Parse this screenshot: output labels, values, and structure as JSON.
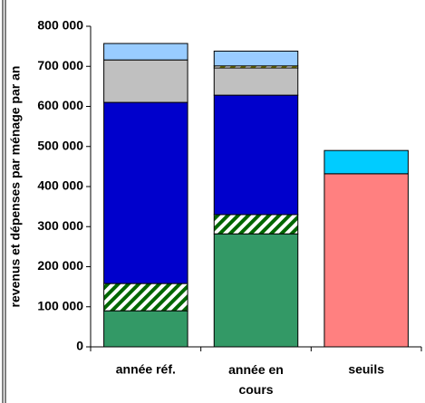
{
  "chart_data": {
    "type": "stacked_bar",
    "y_label": "revenus et dépenses par ménage par an",
    "categories": [
      "année réf.",
      "année en cours",
      "seuils"
    ],
    "series": [
      {
        "color": "#339966",
        "values": [
          90000,
          282000,
          null
        ]
      },
      {
        "color": "#006600",
        "pattern": "hatch",
        "values": [
          68000,
          48000,
          null
        ]
      },
      {
        "color": "#0000cc",
        "values": [
          452000,
          298000,
          null
        ]
      },
      {
        "color": "#c0c0c0",
        "values": [
          106000,
          68000,
          null
        ]
      },
      {
        "color": "#999900",
        "pattern": "hatch",
        "values": [
          null,
          5000,
          null
        ]
      },
      {
        "color": "#99ccff",
        "values": [
          41000,
          37000,
          null
        ]
      },
      {
        "color": "#ff8080",
        "values": [
          null,
          null,
          432000
        ]
      },
      {
        "color": "#00ccff",
        "values": [
          null,
          null,
          58000
        ]
      }
    ],
    "ylim": [
      0,
      800000
    ],
    "yticks": [
      {
        "value": 0,
        "label": "0"
      },
      {
        "value": 100000,
        "label": "100 000"
      },
      {
        "value": 200000,
        "label": "200 000"
      },
      {
        "value": 300000,
        "label": "300 000"
      },
      {
        "value": 400000,
        "label": "400 000"
      },
      {
        "value": 500000,
        "label": "500 000"
      },
      {
        "value": 600000,
        "label": "600 000"
      },
      {
        "value": 700000,
        "label": "700 000"
      },
      {
        "value": 800000,
        "label": "800 000"
      }
    ]
  }
}
